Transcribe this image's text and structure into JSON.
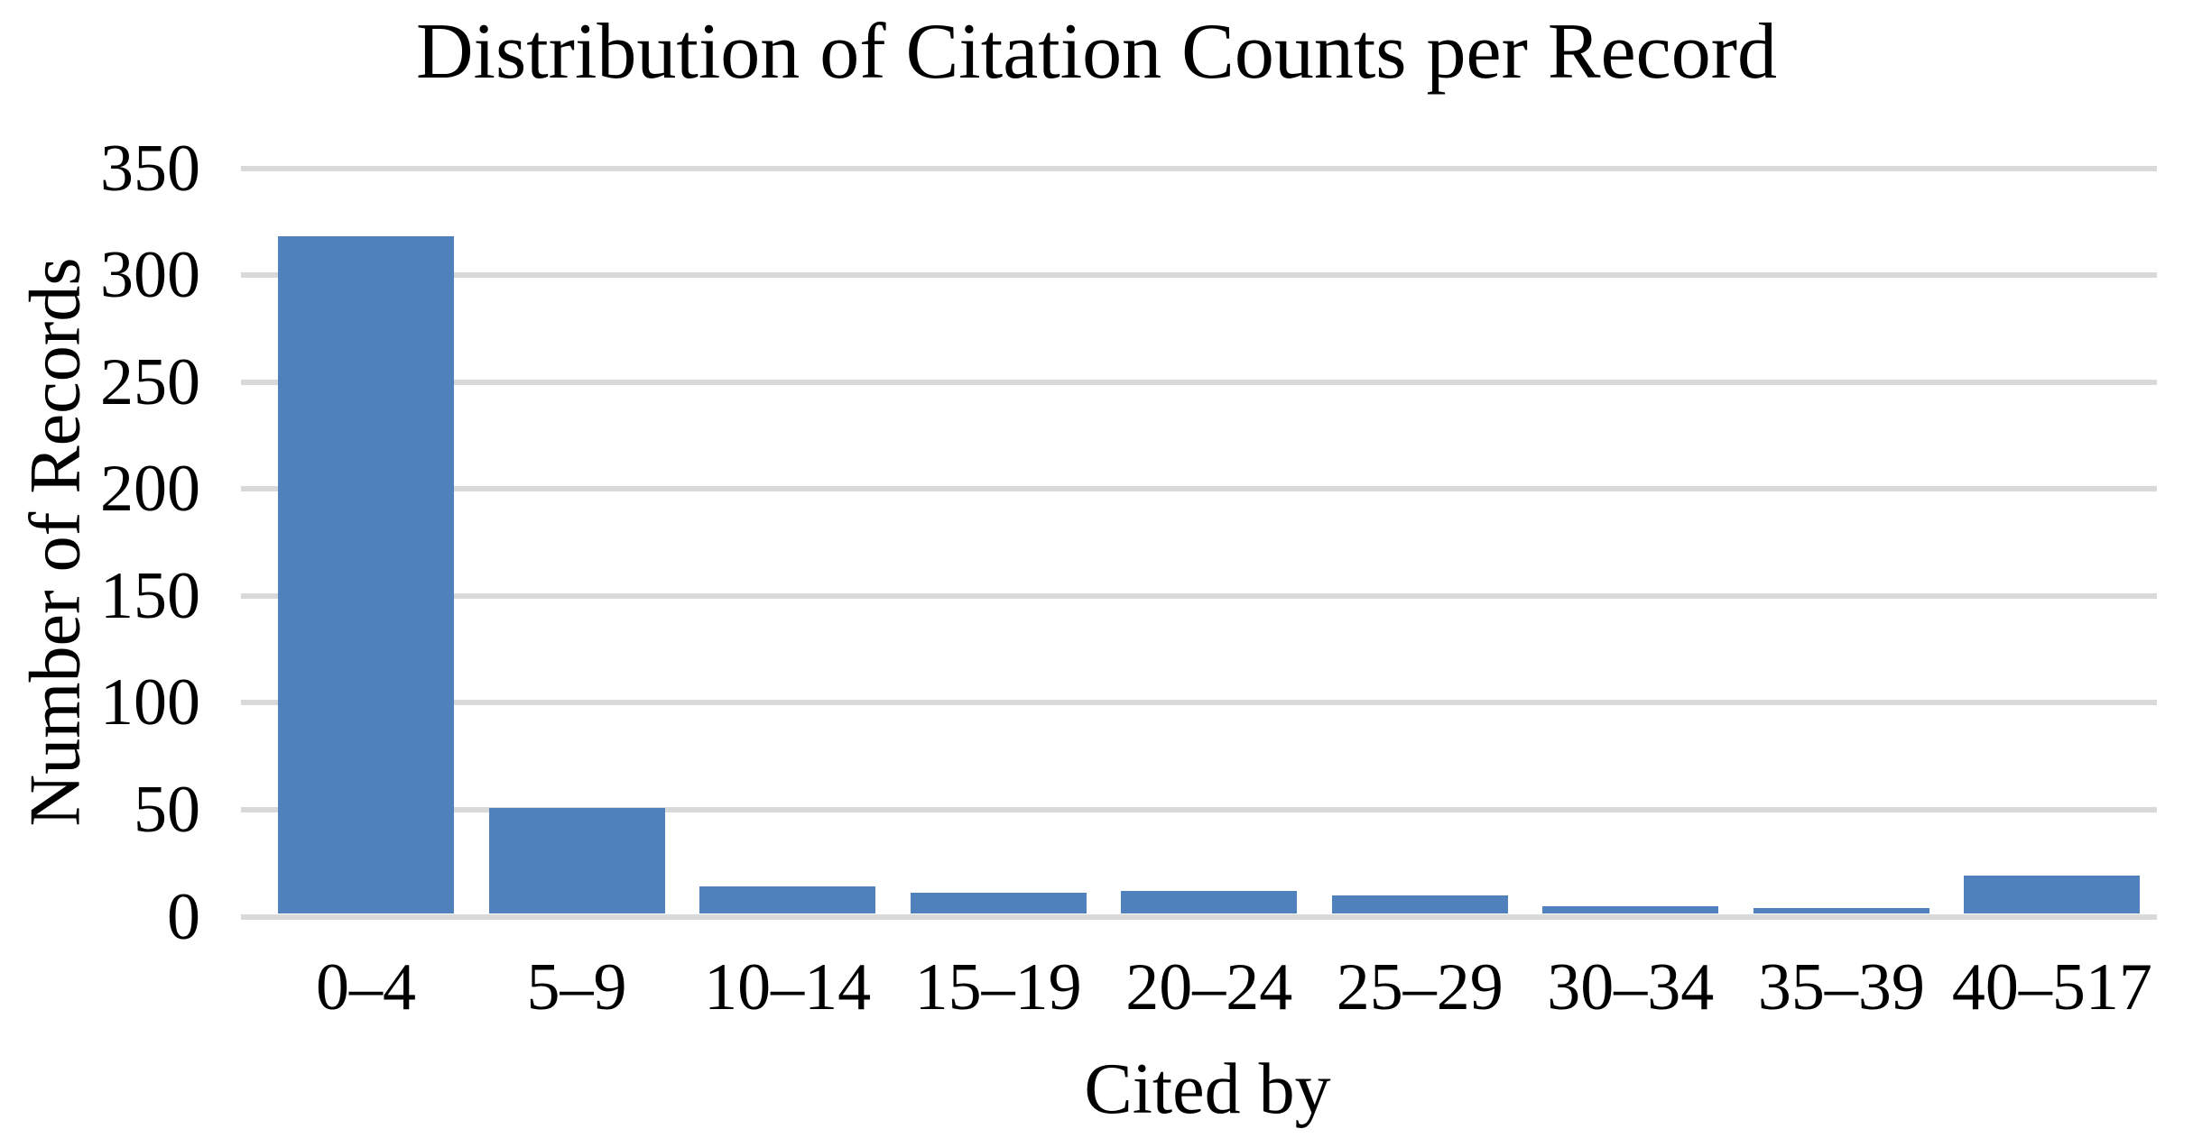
{
  "chart_data": {
    "type": "bar",
    "title": "Distribution of Citation Counts per Record",
    "xlabel": "Cited by",
    "ylabel": "Number of Records",
    "categories": [
      "0–4",
      "5–9",
      "10–14",
      "15–19",
      "20–24",
      "25–29",
      "30–34",
      "35–39",
      "40–517"
    ],
    "values": [
      318,
      51,
      14,
      11,
      12,
      10,
      5,
      4,
      19
    ],
    "ylim": [
      0,
      350
    ],
    "yticks": [
      0,
      50,
      100,
      150,
      200,
      250,
      300,
      350
    ],
    "grid": "horizontal-only",
    "legend": "none",
    "bar_color": "#4F81BD",
    "gridline_color": "#D9D9D9",
    "text_color": "#000000",
    "background_color": "#FFFFFF"
  }
}
